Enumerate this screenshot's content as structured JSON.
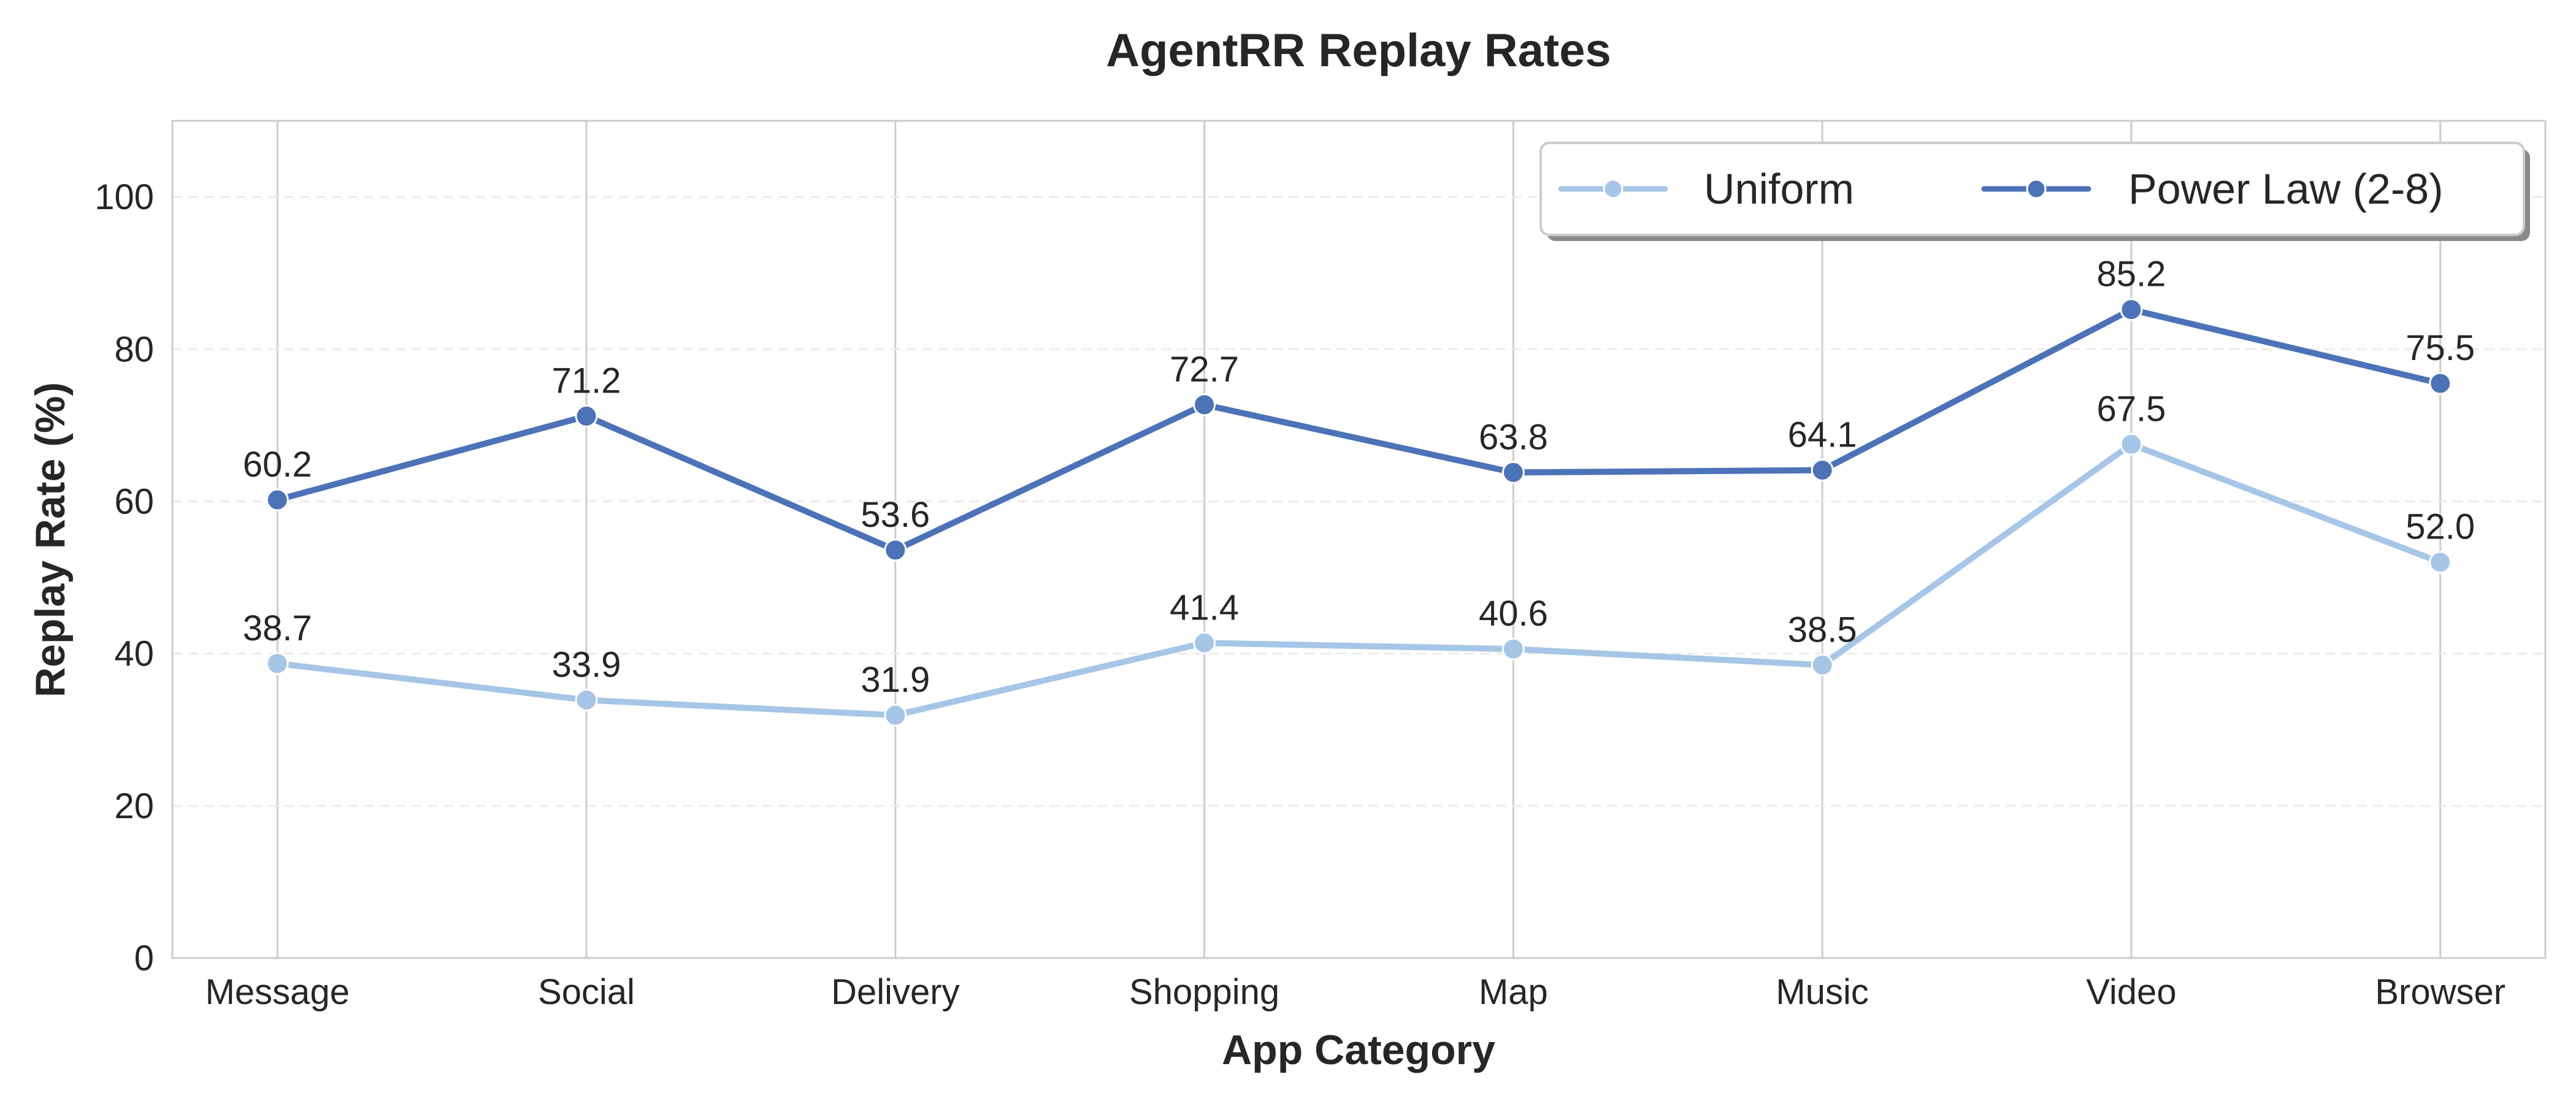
{
  "chart_data": {
    "type": "line",
    "title": "AgentRR Replay Rates",
    "xlabel": "App Category",
    "ylabel": "Replay Rate (%)",
    "categories": [
      "Message",
      "Social",
      "Delivery",
      "Shopping",
      "Map",
      "Music",
      "Video",
      "Browser"
    ],
    "ylim": [
      0,
      110
    ],
    "yticks": [
      0,
      20,
      40,
      60,
      80,
      100
    ],
    "grid": true,
    "legend_position": "top-right",
    "series": [
      {
        "name": "Uniform",
        "color": "#a6c6e7",
        "values": [
          38.7,
          33.9,
          31.9,
          41.4,
          40.6,
          38.5,
          67.5,
          52.0
        ]
      },
      {
        "name": "Power Law (2-8)",
        "color": "#4c72b8",
        "values": [
          60.2,
          71.2,
          53.6,
          72.7,
          63.8,
          64.1,
          85.2,
          75.5
        ]
      }
    ]
  }
}
